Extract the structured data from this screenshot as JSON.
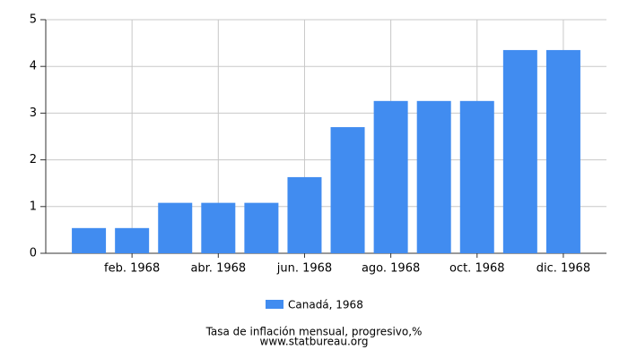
{
  "chart_data": {
    "type": "bar",
    "title": "Tasa de inflación mensual, progresivo,%",
    "source": "www.statbureau.org",
    "categories": [
      null,
      "feb. 1968",
      null,
      "abr. 1968",
      null,
      "jun. 1968",
      null,
      "ago. 1968",
      null,
      "oct. 1968",
      null,
      "dic. 1968"
    ],
    "series": [
      {
        "name": "Canadá, 1968",
        "color": "#418cf0",
        "values": [
          0.54,
          0.54,
          1.08,
          1.08,
          1.08,
          1.63,
          2.7,
          3.26,
          3.26,
          3.26,
          4.35,
          4.35
        ]
      }
    ],
    "ylim": [
      0,
      5
    ],
    "yticks": [
      0,
      1,
      2,
      3,
      4,
      5
    ],
    "grid": true
  }
}
